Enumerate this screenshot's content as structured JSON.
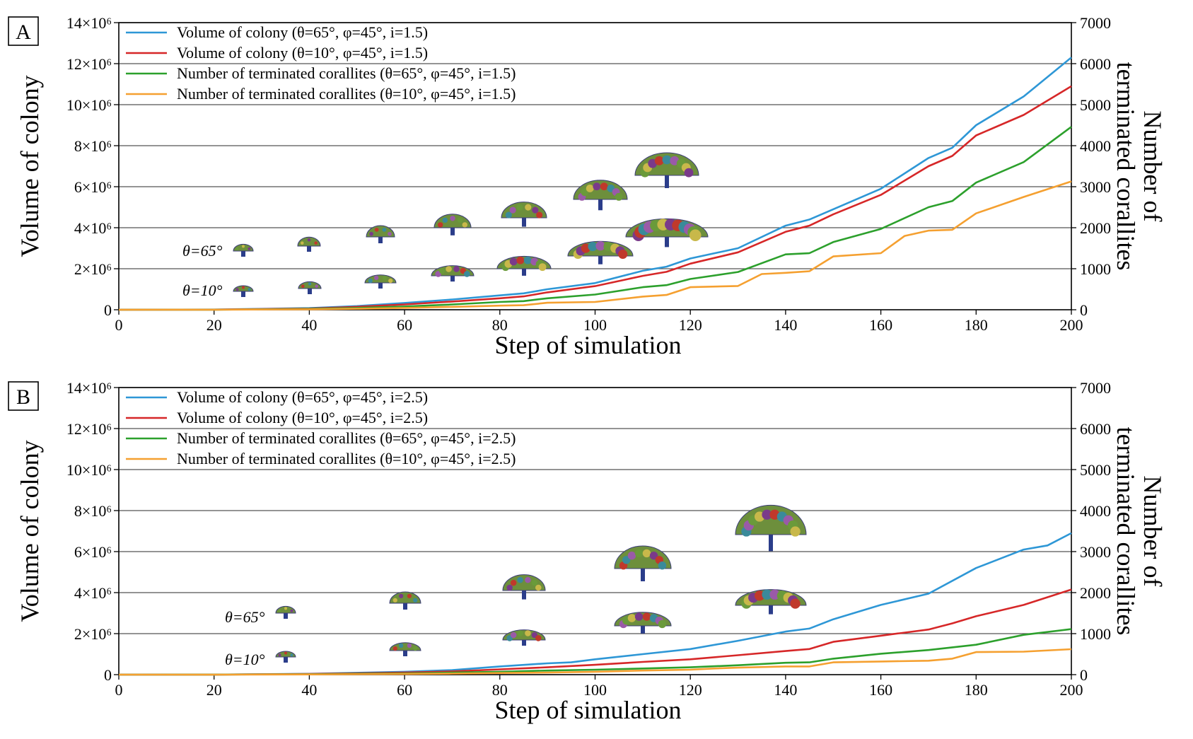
{
  "colors": {
    "volume_theta65": "#2e97d6",
    "volume_theta10": "#d62728",
    "terminated_theta65": "#2ca02c",
    "terminated_theta10": "#f5a030",
    "gridline": "#555555"
  },
  "chart_data": [
    {
      "type": "line",
      "panel_label": "A",
      "xlabel": "Step of simulation",
      "ylabel": "Volume of colony",
      "y2label_line1": "Number of",
      "y2label_line2": "terminated corallites",
      "xlim": [
        0,
        200
      ],
      "ylim": [
        0,
        14000000
      ],
      "y2lim": [
        0,
        7000
      ],
      "xticks": [
        "0",
        "20",
        "40",
        "60",
        "80",
        "100",
        "120",
        "140",
        "160",
        "180",
        "200"
      ],
      "yticks": [
        "0",
        "2×10⁶",
        "4×10⁶",
        "6×10⁶",
        "8×10⁶",
        "10×10⁶",
        "12×10⁶",
        "14×10⁶"
      ],
      "y2ticks": [
        "0",
        "1000",
        "2000",
        "3000",
        "4000",
        "5000",
        "6000",
        "7000"
      ],
      "grid": "horizontal",
      "legend_position": "top-left",
      "inset_labels": [
        "θ=65°",
        "θ=10°"
      ],
      "series": [
        {
          "name": "Volume of colony (θ=65°, φ=45°, i=1.5)",
          "axis": "left",
          "x": [
            0,
            20,
            40,
            50,
            60,
            70,
            80,
            85,
            90,
            100,
            110,
            115,
            120,
            130,
            140,
            145,
            150,
            160,
            170,
            175,
            180,
            190,
            200
          ],
          "y": [
            0,
            10000,
            80000,
            180000,
            330000,
            500000,
            700000,
            800000,
            1000000,
            1300000,
            1900000,
            2100000,
            2500000,
            3000000,
            4100000,
            4400000,
            4900000,
            5900000,
            7400000,
            7900000,
            9000000,
            10400000,
            12300000
          ]
        },
        {
          "name": "Volume of colony (θ=10°, φ=45°, i=1.5)",
          "axis": "left",
          "x": [
            0,
            20,
            40,
            50,
            60,
            70,
            80,
            85,
            90,
            100,
            110,
            115,
            120,
            130,
            140,
            145,
            150,
            160,
            170,
            175,
            180,
            190,
            200
          ],
          "y": [
            0,
            8000,
            60000,
            140000,
            260000,
            400000,
            560000,
            650000,
            850000,
            1150000,
            1650000,
            1850000,
            2250000,
            2800000,
            3800000,
            4100000,
            4650000,
            5600000,
            7000000,
            7500000,
            8500000,
            9500000,
            10900000
          ]
        },
        {
          "name": "Number of terminated corallites (θ=65°, φ=45°, i=1.5)",
          "axis": "right",
          "x": [
            0,
            20,
            40,
            50,
            60,
            70,
            80,
            85,
            90,
            100,
            110,
            115,
            120,
            130,
            140,
            145,
            150,
            160,
            170,
            175,
            180,
            190,
            200
          ],
          "y": [
            0,
            2,
            20,
            45,
            80,
            130,
            190,
            210,
            280,
            370,
            550,
            600,
            750,
            920,
            1350,
            1380,
            1650,
            1970,
            2500,
            2650,
            3100,
            3600,
            4460
          ]
        },
        {
          "name": "Number of terminated corallites (θ=10°, φ=45°, i=1.5)",
          "axis": "right",
          "x": [
            0,
            20,
            40,
            50,
            60,
            70,
            80,
            85,
            90,
            100,
            110,
            115,
            120,
            130,
            135,
            140,
            145,
            150,
            160,
            165,
            170,
            175,
            180,
            190,
            200
          ],
          "y": [
            0,
            1,
            10,
            25,
            45,
            70,
            100,
            110,
            170,
            190,
            320,
            360,
            550,
            580,
            870,
            900,
            940,
            1300,
            1380,
            1800,
            1930,
            1950,
            2350,
            2750,
            3130
          ]
        }
      ]
    },
    {
      "type": "line",
      "panel_label": "B",
      "xlabel": "Step of simulation",
      "ylabel": "Volume of colony",
      "y2label_line1": "Number of",
      "y2label_line2": "terminated corallites",
      "xlim": [
        0,
        200
      ],
      "ylim": [
        0,
        14000000
      ],
      "y2lim": [
        0,
        7000
      ],
      "xticks": [
        "0",
        "20",
        "40",
        "60",
        "80",
        "100",
        "120",
        "140",
        "160",
        "180",
        "200"
      ],
      "yticks": [
        "0",
        "2×10⁶",
        "4×10⁶",
        "6×10⁶",
        "8×10⁶",
        "10×10⁶",
        "12×10⁶",
        "14×10⁶"
      ],
      "y2ticks": [
        "0",
        "1000",
        "2000",
        "3000",
        "4000",
        "5000",
        "6000",
        "7000"
      ],
      "grid": "horizontal",
      "legend_position": "top-left",
      "inset_labels": [
        "θ=65°",
        "θ=10°"
      ],
      "series": [
        {
          "name": "Volume of colony (θ=65°, φ=45°, i=2.5)",
          "axis": "left",
          "x": [
            0,
            20,
            40,
            60,
            70,
            80,
            90,
            95,
            100,
            110,
            120,
            130,
            140,
            145,
            150,
            160,
            170,
            180,
            190,
            195,
            200
          ],
          "y": [
            0,
            5000,
            40000,
            140000,
            220000,
            400000,
            550000,
            600000,
            750000,
            1000000,
            1250000,
            1650000,
            2100000,
            2250000,
            2700000,
            3400000,
            3950000,
            5200000,
            6100000,
            6300000,
            6900000
          ]
        },
        {
          "name": "Volume of colony (θ=10°, φ=45°, i=2.5)",
          "axis": "left",
          "x": [
            0,
            20,
            40,
            60,
            70,
            80,
            90,
            100,
            110,
            120,
            130,
            140,
            145,
            150,
            160,
            170,
            175,
            180,
            190,
            200
          ],
          "y": [
            0,
            4000,
            30000,
            100000,
            160000,
            260000,
            360000,
            480000,
            620000,
            750000,
            950000,
            1150000,
            1250000,
            1600000,
            1900000,
            2200000,
            2500000,
            2850000,
            3400000,
            4150000
          ]
        },
        {
          "name": "Number of terminated corallites (θ=65°, φ=45°, i=2.5)",
          "axis": "right",
          "x": [
            0,
            20,
            40,
            60,
            70,
            80,
            90,
            100,
            110,
            120,
            130,
            140,
            145,
            150,
            160,
            170,
            180,
            190,
            200
          ],
          "y": [
            0,
            1,
            10,
            30,
            50,
            70,
            100,
            120,
            150,
            180,
            230,
            290,
            300,
            390,
            510,
            600,
            730,
            970,
            1110
          ]
        },
        {
          "name": "Number of terminated corallites (θ=10°, φ=45°, i=2.5)",
          "axis": "right",
          "x": [
            0,
            20,
            40,
            60,
            70,
            80,
            90,
            100,
            110,
            120,
            125,
            130,
            140,
            145,
            150,
            160,
            170,
            175,
            180,
            190,
            200
          ],
          "y": [
            0,
            0,
            5,
            15,
            25,
            40,
            50,
            70,
            100,
            120,
            150,
            170,
            200,
            200,
            300,
            320,
            340,
            390,
            550,
            560,
            620
          ]
        }
      ]
    }
  ]
}
